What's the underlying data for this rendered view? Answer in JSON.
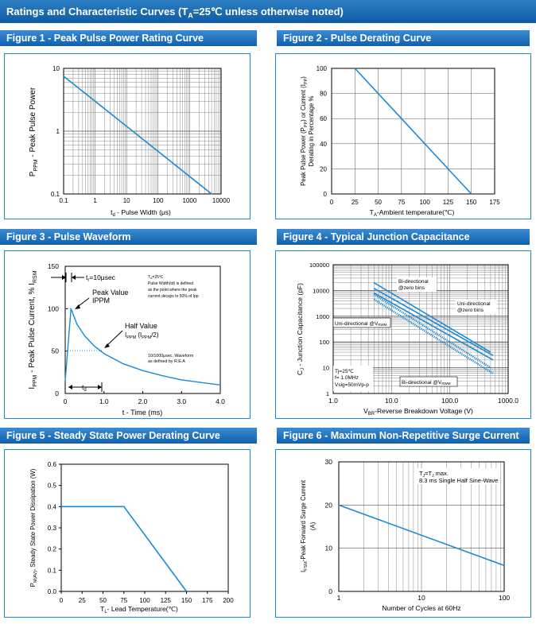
{
  "header": {
    "pre": "Ratings and Characteristic Curves (T",
    "sub": "A",
    "post": "=25℃  unless otherwise noted)"
  },
  "charts": {
    "f1": {
      "title": "Figure 1 - Peak Pulse Power Rating Curve",
      "ylabel": "P",
      "ylabel_sub": "PPM",
      "ylabel_rest": "  -   Peak   Pulse   Power",
      "xlabel": "t",
      "xlabel_sub": "d",
      "xlabel_rest": " - Pulse Width (μs)",
      "xticks": [
        "0.1",
        "1",
        "10",
        "100",
        "1000",
        "10000"
      ],
      "yticks": [
        "0.1",
        "1",
        "10"
      ]
    },
    "f2": {
      "title": "Figure 2 - Pulse Derating Curve",
      "ylabel1": "Peak Pulse Power (P",
      "ylabel1_sub": "PP",
      "ylabel1_rest": ") or Current (I",
      "ylabel1_sub2": "PP",
      "ylabel1_end": ")",
      "ylabel2": "Derating in Percentage %",
      "xlabel": "T",
      "xlabel_sub": "A",
      "xlabel_rest": "-Ambient temperature(℃)",
      "xticks": [
        "0",
        "25",
        "50",
        "75",
        "100",
        "125",
        "150",
        "175"
      ],
      "yticks": [
        "0",
        "20",
        "40",
        "60",
        "80",
        "100"
      ]
    },
    "f3": {
      "title": "Figure 3 - Pulse Waveform",
      "ylabel": "I",
      "ylabel_sub": "PPM",
      "ylabel_rest": " - Peak Pulse Current, % I",
      "ylabel_sub2": "RSM",
      "xlabel": "t - Time (ms)",
      "xticks": [
        "0",
        "1.0",
        "2.0",
        "3.0",
        "4.0"
      ],
      "yticks": [
        "0",
        "50",
        "100",
        "150"
      ],
      "tr_label": "t",
      "tr_sub": "r",
      "tr_rest": "=10μsec",
      "peak_label1": "Peak Value",
      "peak_label2": "IPPM",
      "half_label1": "Half Value",
      "half_label2": "I",
      "half_sub": "PPM",
      "half_rest": " (I",
      "half_sub2": "PPM",
      "half_end": "/2)",
      "note1": "T",
      "note1_sub": "A",
      "note1_rest": "=25℃",
      "note2": "Pulse Width(td) is defined",
      "note3": "as the point where the peak",
      "note4": "current decays to 50% of Ipp",
      "wave1": "10/1000μsec. Waveform",
      "wave2": "as defined by R.E.A",
      "td_label": "t",
      "td_sub": "d"
    },
    "f4": {
      "title": "Figure 4 - Typical Junction Capacitance",
      "ylabel": "C",
      "ylabel_sub": "J",
      "ylabel_rest": " - Junction Capacitance (pF)",
      "xlabel": "V",
      "xlabel_sub": "BR",
      "xlabel_rest": "-Reverse Breakdown Voltage (V)",
      "xticks": [
        "1.0",
        "10.0",
        "100.0",
        "1000.0"
      ],
      "yticks": [
        "1",
        "10",
        "100",
        "1000",
        "10000",
        "100000"
      ],
      "lab_bi_zero1": "Bi-directional",
      "lab_bi_zero2": "@zero bins",
      "lab_uni_zero1": "Uni-directional",
      "lab_uni_zero2": "@zero bins",
      "lab_uni_v": "Uni-directional @V",
      "lab_uni_v_sub": "RWM",
      "lab_bi_v": "Bi-directional @V",
      "lab_bi_v_sub": "RWM",
      "cond1": "Tj=25℃",
      "cond2": "f= 1.0MHz",
      "cond3": "Vsig=50mVp-p"
    },
    "f5": {
      "title": "Figure 5 - Steady State Power Derating Curve",
      "ylabel": "P",
      "ylabel_sub": "M(AV)",
      "ylabel_rest": ", Steady State Power Dissipation (W)",
      "xlabel": "T",
      "xlabel_sub": "L",
      "xlabel_rest": "- Lead Temperature(℃)",
      "xticks": [
        "0",
        "25",
        "50",
        "75",
        "100",
        "125",
        "150",
        "175",
        "200"
      ],
      "yticks": [
        "0.0",
        "0.1",
        "0.2",
        "0.3",
        "0.4",
        "0.5",
        "0.6"
      ]
    },
    "f6": {
      "title": "Figure 6 - Maximum Non-Repetitive Surge Current",
      "ylabel1": "I",
      "ylabel1_sub": "FSM",
      "ylabel1_rest": "-Peak Forward Surge Current",
      "ylabel2": "(A)",
      "xlabel": "Number of Cycles at 60Hz",
      "xticks": [
        "1",
        "10",
        "100"
      ],
      "yticks": [
        "0",
        "10",
        "20",
        "30"
      ],
      "note1": "T",
      "note1_sub": "J",
      "note1_mid": "=T",
      "note1_sub2": "J",
      "note1_rest": " max.",
      "note2": "8.3 ms Single Half Sine-Wave"
    }
  },
  "chart_data": [
    {
      "type": "line",
      "id": "f1",
      "title": "Figure 1 - Peak Pulse Power Rating Curve",
      "xscale": "log",
      "yscale": "log",
      "xlim": [
        0.1,
        10000
      ],
      "ylim": [
        0.1,
        10
      ],
      "series": [
        {
          "name": "PPPM",
          "x": [
            0.1,
            5000
          ],
          "y": [
            7.5,
            0.1
          ]
        }
      ]
    },
    {
      "type": "line",
      "id": "f2",
      "title": "Figure 2 - Pulse Derating Curve",
      "xlim": [
        0,
        175
      ],
      "ylim": [
        0,
        100
      ],
      "series": [
        {
          "name": "Derating",
          "x": [
            25,
            150
          ],
          "y": [
            100,
            0
          ]
        }
      ]
    },
    {
      "type": "line",
      "id": "f3",
      "title": "Figure 3 - Pulse Waveform",
      "xlim": [
        0,
        4
      ],
      "ylim": [
        0,
        150
      ],
      "series": [
        {
          "name": "Waveform",
          "x": [
            0,
            0.15,
            0.3,
            0.5,
            0.75,
            1.0,
            1.5,
            2.0,
            2.5,
            3.0,
            3.5,
            4.0
          ],
          "y": [
            15,
            100,
            82,
            68,
            56,
            47,
            35,
            27,
            21,
            16,
            13,
            10
          ]
        }
      ]
    },
    {
      "type": "line",
      "id": "f4",
      "title": "Figure 4 - Typical Junction Capacitance",
      "xscale": "log",
      "yscale": "log",
      "xlim": [
        1,
        1000
      ],
      "ylim": [
        1,
        100000
      ],
      "series": [
        {
          "name": "Bi-directional @zero bins",
          "x": [
            5,
            500
          ],
          "y": [
            20000,
            40
          ],
          "style": "solid"
        },
        {
          "name": "Uni-directional @zero bins",
          "x": [
            5,
            550
          ],
          "y": [
            12000,
            30
          ],
          "style": "solid"
        },
        {
          "name": "Uni-directional @VRWM",
          "x": [
            5,
            550
          ],
          "y": [
            8000,
            20
          ],
          "style": "solid"
        },
        {
          "name": "Bi-directional @VRWM (1)",
          "x": [
            5,
            500
          ],
          "y": [
            7000,
            10
          ],
          "style": "dotted"
        },
        {
          "name": "Bi-directional @VRWM (2)",
          "x": [
            5,
            550
          ],
          "y": [
            4500,
            6
          ],
          "style": "dotted"
        }
      ]
    },
    {
      "type": "line",
      "id": "f5",
      "title": "Figure 5 - Steady State Power Derating Curve",
      "xlim": [
        0,
        200
      ],
      "ylim": [
        0,
        0.6
      ],
      "series": [
        {
          "name": "PM(AV)",
          "x": [
            0,
            75,
            150
          ],
          "y": [
            0.4,
            0.4,
            0.0
          ]
        }
      ]
    },
    {
      "type": "line",
      "id": "f6",
      "title": "Figure 6 - Maximum Non-Repetitive Surge Current",
      "xscale": "log",
      "xlim": [
        1,
        100
      ],
      "ylim": [
        0,
        30
      ],
      "series": [
        {
          "name": "IFSM",
          "x": [
            1,
            100
          ],
          "y": [
            20,
            6
          ]
        }
      ]
    }
  ]
}
